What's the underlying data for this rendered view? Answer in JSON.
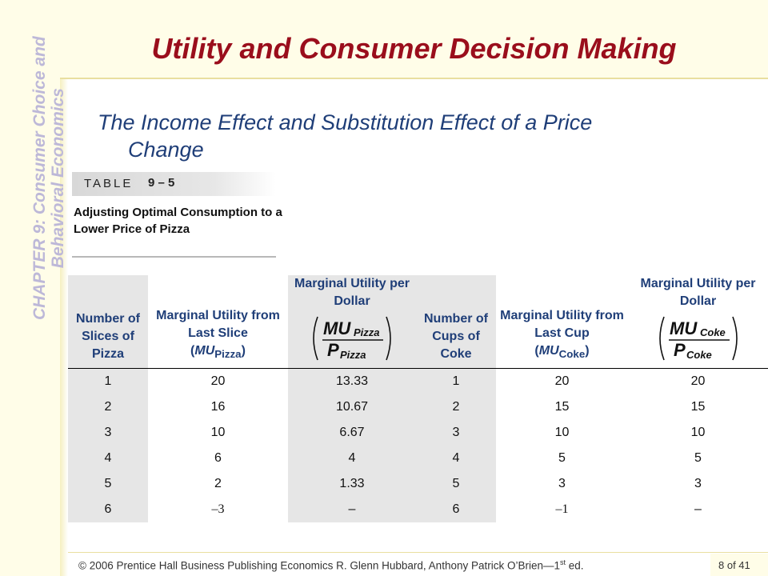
{
  "sidebar": {
    "chapter_line1": "CHAPTER 9:  Consumer Choice and",
    "chapter_line2": "Behavioral Economics"
  },
  "header": {
    "title": "Utility and Consumer Decision Making"
  },
  "subtitle": {
    "line1": "The Income Effect and Substitution Effect of a Price",
    "line2": "Change"
  },
  "table_label": {
    "word": "TABLE",
    "number": "9 – 5",
    "caption": "Adjusting Optimal Consumption to a Lower Price of Pizza"
  },
  "table": {
    "headers": {
      "c1": "Number of Slices of Pizza",
      "c2_text": "Marginal Utility from Last Slice",
      "c2_symbol": "MU",
      "c2_sub": "Pizza",
      "c3": "Marginal Utility per Dollar",
      "c3_num": "MU",
      "c3_num_sub": "Pizza",
      "c3_den": "P",
      "c3_den_sub": "Pizza",
      "c4": "Number of Cups of Coke",
      "c5_text": "Marginal Utility from Last Cup",
      "c5_symbol": "MU",
      "c5_sub": "Coke",
      "c6": "Marginal Utility per Dollar",
      "c6_num": "MU",
      "c6_num_sub": "Coke",
      "c6_den": "P",
      "c6_den_sub": "Coke"
    },
    "rows": [
      [
        "1",
        "20",
        "13.33",
        "1",
        "20",
        "20"
      ],
      [
        "2",
        "16",
        "10.67",
        "2",
        "15",
        "15"
      ],
      [
        "3",
        "10",
        "6.67",
        "3",
        "10",
        "10"
      ],
      [
        "4",
        "6",
        "4",
        "4",
        "5",
        "5"
      ],
      [
        "5",
        "2",
        "1.33",
        "5",
        "3",
        "3"
      ],
      [
        "6",
        "–3",
        "–",
        "6",
        "–1",
        "–"
      ]
    ]
  },
  "footer": {
    "text": "© 2006 Prentice Hall Business Publishing   Economics  R. Glenn Hubbard, Anthony Patrick O’Brien—1",
    "sup": "st",
    "suffix": " ed.",
    "page": "8 of 41"
  }
}
